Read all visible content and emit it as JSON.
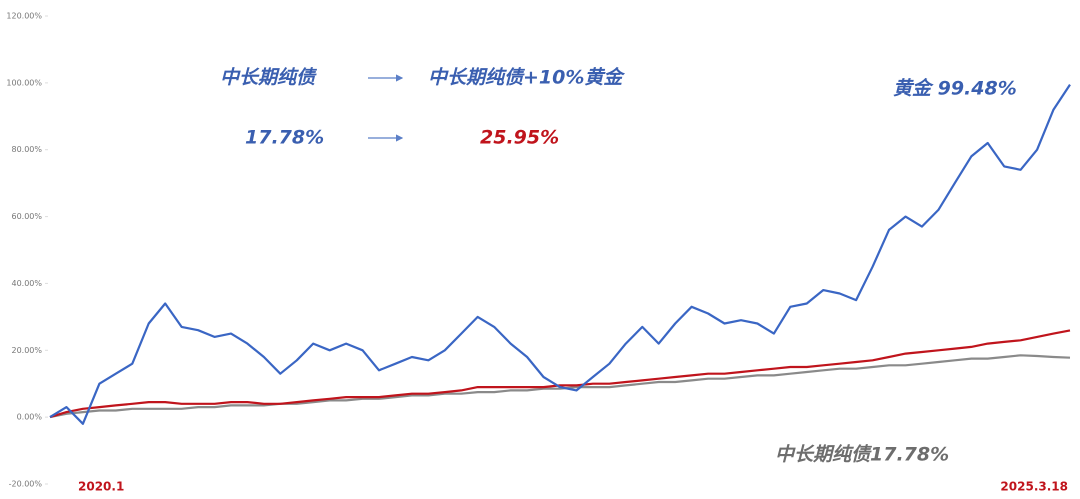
{
  "chart_data": {
    "type": "line",
    "annotations": [
      "中长期纯债",
      "中长期纯债+10%黄金",
      "17.78%",
      "25.95%",
      "黄金 99.48%",
      "中长期纯债17.78%"
    ],
    "categories": [
      "2020.1",
      null,
      null,
      null,
      null,
      null,
      null,
      null,
      null,
      null,
      null,
      null,
      null,
      null,
      null,
      null,
      null,
      null,
      null,
      null,
      null,
      null,
      null,
      null,
      null,
      null,
      null,
      null,
      null,
      null,
      null,
      null,
      null,
      null,
      null,
      null,
      null,
      null,
      null,
      null,
      null,
      null,
      null,
      null,
      null,
      null,
      null,
      null,
      null,
      null,
      null,
      null,
      null,
      null,
      null,
      null,
      null,
      null,
      null,
      null,
      null,
      null,
      "2025.3.18"
    ],
    "series": [
      {
        "color": "#3a66c4",
        "values": [
          0,
          3,
          -2,
          10,
          13,
          16,
          28,
          34,
          27,
          26,
          24,
          25,
          22,
          18,
          13,
          17,
          22,
          20,
          22,
          20,
          14,
          16,
          18,
          17,
          20,
          25,
          30,
          27,
          22,
          18,
          12,
          9,
          8,
          12,
          16,
          22,
          27,
          22,
          28,
          33,
          31,
          28,
          29,
          28,
          25,
          33,
          34,
          38,
          37,
          35,
          45,
          56,
          60,
          57,
          62,
          70,
          78,
          82,
          75,
          74,
          80,
          92,
          99.48
        ]
      },
      {
        "color": "#c0141c",
        "values": [
          0,
          1.5,
          2.5,
          3,
          3.5,
          4,
          4.5,
          4.5,
          4,
          4,
          4,
          4.5,
          4.5,
          4,
          4,
          4.5,
          5,
          5.5,
          6,
          6,
          6,
          6.5,
          7,
          7,
          7.5,
          8,
          9,
          9,
          9,
          9,
          9,
          9.5,
          9.5,
          10,
          10,
          10.5,
          11,
          11.5,
          12,
          12.5,
          13,
          13,
          13.5,
          14,
          14.5,
          15,
          15,
          15.5,
          16,
          16.5,
          17,
          18,
          19,
          19.5,
          20,
          20.5,
          21,
          22,
          22.5,
          23,
          24,
          25,
          25.95
        ]
      },
      {
        "color": "#8a8a8a",
        "values": [
          0,
          1,
          1.5,
          2,
          2,
          2.5,
          2.5,
          2.5,
          2.5,
          3,
          3,
          3.5,
          3.5,
          3.5,
          4,
          4,
          4.5,
          5,
          5,
          5.5,
          5.5,
          6,
          6.5,
          6.5,
          7,
          7,
          7.5,
          7.5,
          8,
          8,
          8.5,
          8.5,
          9,
          9,
          9,
          9.5,
          10,
          10.5,
          10.5,
          11,
          11.5,
          11.5,
          12,
          12.5,
          12.5,
          13,
          13.5,
          14,
          14.5,
          14.5,
          15,
          15.5,
          15.5,
          16,
          16.5,
          17,
          17.5,
          17.5,
          18,
          18.5,
          18.3,
          18,
          17.78
        ]
      }
    ],
    "ylim": [
      -20,
      120
    ],
    "yticks": [
      {
        "value": -20,
        "label": "-20.00%"
      },
      {
        "value": 0,
        "label": "0.00%"
      },
      {
        "value": 20,
        "label": "20.00%"
      },
      {
        "value": 40,
        "label": "40.00%"
      },
      {
        "value": 60,
        "label": "60.00%"
      },
      {
        "value": 80,
        "label": "80.00%"
      },
      {
        "value": 100,
        "label": "100.00%"
      },
      {
        "value": 120,
        "label": "120.00%"
      }
    ],
    "grid": false
  }
}
